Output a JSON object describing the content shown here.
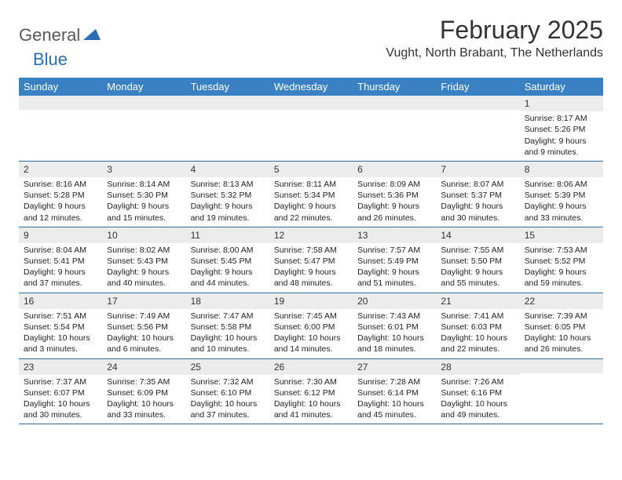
{
  "logo": {
    "general": "General",
    "blue": "Blue"
  },
  "title": "February 2025",
  "location": "Vught, North Brabant, The Netherlands",
  "colors": {
    "header_bg": "#3a81c4",
    "header_text": "#ffffff",
    "daynum_bg": "#ececec",
    "rule": "#3a6a9a",
    "logo_gray": "#5a5a5a",
    "logo_blue": "#2a6fb5"
  },
  "weekdays": [
    "Sunday",
    "Monday",
    "Tuesday",
    "Wednesday",
    "Thursday",
    "Friday",
    "Saturday"
  ],
  "weeks": [
    [
      {
        "n": "",
        "sr": "",
        "ss": "",
        "dl": ""
      },
      {
        "n": "",
        "sr": "",
        "ss": "",
        "dl": ""
      },
      {
        "n": "",
        "sr": "",
        "ss": "",
        "dl": ""
      },
      {
        "n": "",
        "sr": "",
        "ss": "",
        "dl": ""
      },
      {
        "n": "",
        "sr": "",
        "ss": "",
        "dl": ""
      },
      {
        "n": "",
        "sr": "",
        "ss": "",
        "dl": ""
      },
      {
        "n": "1",
        "sr": "Sunrise: 8:17 AM",
        "ss": "Sunset: 5:26 PM",
        "dl": "Daylight: 9 hours and 9 minutes."
      }
    ],
    [
      {
        "n": "2",
        "sr": "Sunrise: 8:16 AM",
        "ss": "Sunset: 5:28 PM",
        "dl": "Daylight: 9 hours and 12 minutes."
      },
      {
        "n": "3",
        "sr": "Sunrise: 8:14 AM",
        "ss": "Sunset: 5:30 PM",
        "dl": "Daylight: 9 hours and 15 minutes."
      },
      {
        "n": "4",
        "sr": "Sunrise: 8:13 AM",
        "ss": "Sunset: 5:32 PM",
        "dl": "Daylight: 9 hours and 19 minutes."
      },
      {
        "n": "5",
        "sr": "Sunrise: 8:11 AM",
        "ss": "Sunset: 5:34 PM",
        "dl": "Daylight: 9 hours and 22 minutes."
      },
      {
        "n": "6",
        "sr": "Sunrise: 8:09 AM",
        "ss": "Sunset: 5:36 PM",
        "dl": "Daylight: 9 hours and 26 minutes."
      },
      {
        "n": "7",
        "sr": "Sunrise: 8:07 AM",
        "ss": "Sunset: 5:37 PM",
        "dl": "Daylight: 9 hours and 30 minutes."
      },
      {
        "n": "8",
        "sr": "Sunrise: 8:06 AM",
        "ss": "Sunset: 5:39 PM",
        "dl": "Daylight: 9 hours and 33 minutes."
      }
    ],
    [
      {
        "n": "9",
        "sr": "Sunrise: 8:04 AM",
        "ss": "Sunset: 5:41 PM",
        "dl": "Daylight: 9 hours and 37 minutes."
      },
      {
        "n": "10",
        "sr": "Sunrise: 8:02 AM",
        "ss": "Sunset: 5:43 PM",
        "dl": "Daylight: 9 hours and 40 minutes."
      },
      {
        "n": "11",
        "sr": "Sunrise: 8:00 AM",
        "ss": "Sunset: 5:45 PM",
        "dl": "Daylight: 9 hours and 44 minutes."
      },
      {
        "n": "12",
        "sr": "Sunrise: 7:58 AM",
        "ss": "Sunset: 5:47 PM",
        "dl": "Daylight: 9 hours and 48 minutes."
      },
      {
        "n": "13",
        "sr": "Sunrise: 7:57 AM",
        "ss": "Sunset: 5:49 PM",
        "dl": "Daylight: 9 hours and 51 minutes."
      },
      {
        "n": "14",
        "sr": "Sunrise: 7:55 AM",
        "ss": "Sunset: 5:50 PM",
        "dl": "Daylight: 9 hours and 55 minutes."
      },
      {
        "n": "15",
        "sr": "Sunrise: 7:53 AM",
        "ss": "Sunset: 5:52 PM",
        "dl": "Daylight: 9 hours and 59 minutes."
      }
    ],
    [
      {
        "n": "16",
        "sr": "Sunrise: 7:51 AM",
        "ss": "Sunset: 5:54 PM",
        "dl": "Daylight: 10 hours and 3 minutes."
      },
      {
        "n": "17",
        "sr": "Sunrise: 7:49 AM",
        "ss": "Sunset: 5:56 PM",
        "dl": "Daylight: 10 hours and 6 minutes."
      },
      {
        "n": "18",
        "sr": "Sunrise: 7:47 AM",
        "ss": "Sunset: 5:58 PM",
        "dl": "Daylight: 10 hours and 10 minutes."
      },
      {
        "n": "19",
        "sr": "Sunrise: 7:45 AM",
        "ss": "Sunset: 6:00 PM",
        "dl": "Daylight: 10 hours and 14 minutes."
      },
      {
        "n": "20",
        "sr": "Sunrise: 7:43 AM",
        "ss": "Sunset: 6:01 PM",
        "dl": "Daylight: 10 hours and 18 minutes."
      },
      {
        "n": "21",
        "sr": "Sunrise: 7:41 AM",
        "ss": "Sunset: 6:03 PM",
        "dl": "Daylight: 10 hours and 22 minutes."
      },
      {
        "n": "22",
        "sr": "Sunrise: 7:39 AM",
        "ss": "Sunset: 6:05 PM",
        "dl": "Daylight: 10 hours and 26 minutes."
      }
    ],
    [
      {
        "n": "23",
        "sr": "Sunrise: 7:37 AM",
        "ss": "Sunset: 6:07 PM",
        "dl": "Daylight: 10 hours and 30 minutes."
      },
      {
        "n": "24",
        "sr": "Sunrise: 7:35 AM",
        "ss": "Sunset: 6:09 PM",
        "dl": "Daylight: 10 hours and 33 minutes."
      },
      {
        "n": "25",
        "sr": "Sunrise: 7:32 AM",
        "ss": "Sunset: 6:10 PM",
        "dl": "Daylight: 10 hours and 37 minutes."
      },
      {
        "n": "26",
        "sr": "Sunrise: 7:30 AM",
        "ss": "Sunset: 6:12 PM",
        "dl": "Daylight: 10 hours and 41 minutes."
      },
      {
        "n": "27",
        "sr": "Sunrise: 7:28 AM",
        "ss": "Sunset: 6:14 PM",
        "dl": "Daylight: 10 hours and 45 minutes."
      },
      {
        "n": "28",
        "sr": "Sunrise: 7:26 AM",
        "ss": "Sunset: 6:16 PM",
        "dl": "Daylight: 10 hours and 49 minutes."
      },
      {
        "n": "",
        "sr": "",
        "ss": "",
        "dl": ""
      }
    ]
  ]
}
